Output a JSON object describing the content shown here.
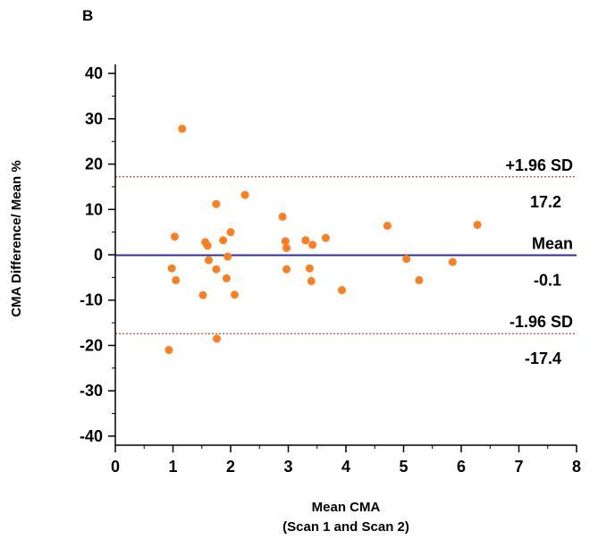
{
  "panel_label": "B",
  "chart_data": {
    "type": "scatter",
    "title": "",
    "xlabel": "Mean CMA",
    "xlabel_sub": "(Scan 1 and Scan 2)",
    "ylabel": "CMA Difference/ Mean %",
    "xlim": [
      0,
      8
    ],
    "ylim": [
      -42,
      42
    ],
    "x_ticks": [
      0,
      1,
      2,
      3,
      4,
      5,
      6,
      7,
      8
    ],
    "y_ticks": [
      40,
      30,
      20,
      10,
      0,
      -10,
      -20,
      -30,
      -40
    ],
    "grid": false,
    "point_color": "#ff7f1f",
    "mean_line_color": "#2f2f9f",
    "limit_line_color": "#d23c3c",
    "reference_lines": [
      {
        "name": "+1.96 SD",
        "value": 17.2,
        "label_value": "17.2",
        "style": "dotted"
      },
      {
        "name": "Mean",
        "value": -0.1,
        "label_value": "-0.1",
        "style": "solid"
      },
      {
        "name": "-1.96 SD",
        "value": -17.4,
        "label_value": "-17.4",
        "style": "dotted"
      }
    ],
    "points": [
      {
        "x": 1.16,
        "y": 27.8
      },
      {
        "x": 1.75,
        "y": 11.2
      },
      {
        "x": 2.25,
        "y": 13.2
      },
      {
        "x": 2.9,
        "y": 8.4
      },
      {
        "x": 1.03,
        "y": 4.0
      },
      {
        "x": 2.0,
        "y": 5.0
      },
      {
        "x": 1.56,
        "y": 2.8
      },
      {
        "x": 1.6,
        "y": 2.0
      },
      {
        "x": 1.87,
        "y": 3.2
      },
      {
        "x": 2.95,
        "y": 3.0
      },
      {
        "x": 2.97,
        "y": 1.5
      },
      {
        "x": 3.3,
        "y": 3.2
      },
      {
        "x": 3.42,
        "y": 2.2
      },
      {
        "x": 3.65,
        "y": 3.7
      },
      {
        "x": 4.72,
        "y": 6.4
      },
      {
        "x": 6.28,
        "y": 6.6
      },
      {
        "x": 1.95,
        "y": -0.4
      },
      {
        "x": 1.62,
        "y": -1.2
      },
      {
        "x": 5.05,
        "y": -0.9
      },
      {
        "x": 5.85,
        "y": -1.6
      },
      {
        "x": 0.98,
        "y": -3.0
      },
      {
        "x": 1.75,
        "y": -3.2
      },
      {
        "x": 2.97,
        "y": -3.2
      },
      {
        "x": 3.37,
        "y": -3.0
      },
      {
        "x": 1.05,
        "y": -5.6
      },
      {
        "x": 1.93,
        "y": -5.2
      },
      {
        "x": 3.4,
        "y": -5.8
      },
      {
        "x": 5.27,
        "y": -5.6
      },
      {
        "x": 3.93,
        "y": -7.8
      },
      {
        "x": 1.52,
        "y": -8.9
      },
      {
        "x": 2.07,
        "y": -8.8
      },
      {
        "x": 1.76,
        "y": -18.5
      },
      {
        "x": 0.93,
        "y": -21.0
      }
    ]
  }
}
